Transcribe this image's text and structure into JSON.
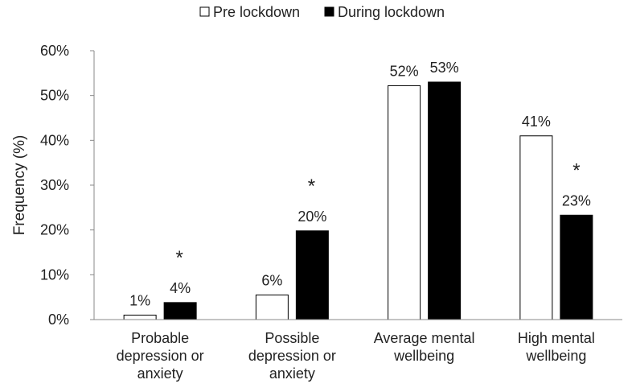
{
  "chart_data": {
    "type": "bar",
    "ylabel": "Frequency (%)",
    "xlabel": "",
    "title": "",
    "ylim": [
      0,
      60
    ],
    "yticks": [
      "0%",
      "10%",
      "20%",
      "30%",
      "40%",
      "50%",
      "60%"
    ],
    "ytick_values": [
      0,
      10,
      20,
      30,
      40,
      50,
      60
    ],
    "categories": [
      [
        "Probable",
        "depression or",
        "anxiety"
      ],
      [
        "Possible",
        "depression or",
        "anxiety"
      ],
      [
        "Average mental",
        "wellbeing"
      ],
      [
        "High mental",
        "wellbeing"
      ]
    ],
    "series": [
      {
        "name": "Pre lockdown",
        "color": "#ffffff",
        "values": [
          1,
          5.5,
          52.2,
          41
        ],
        "labels": [
          "1%",
          "6%",
          "52%",
          "41%"
        ]
      },
      {
        "name": "During lockdown",
        "color": "#000000",
        "values": [
          3.8,
          19.8,
          53,
          23.3
        ],
        "labels": [
          "4%",
          "20%",
          "53%",
          "23%"
        ]
      }
    ],
    "significance": [
      "*",
      "*",
      "",
      "*"
    ],
    "legend_position": "top-center",
    "grid": false
  }
}
